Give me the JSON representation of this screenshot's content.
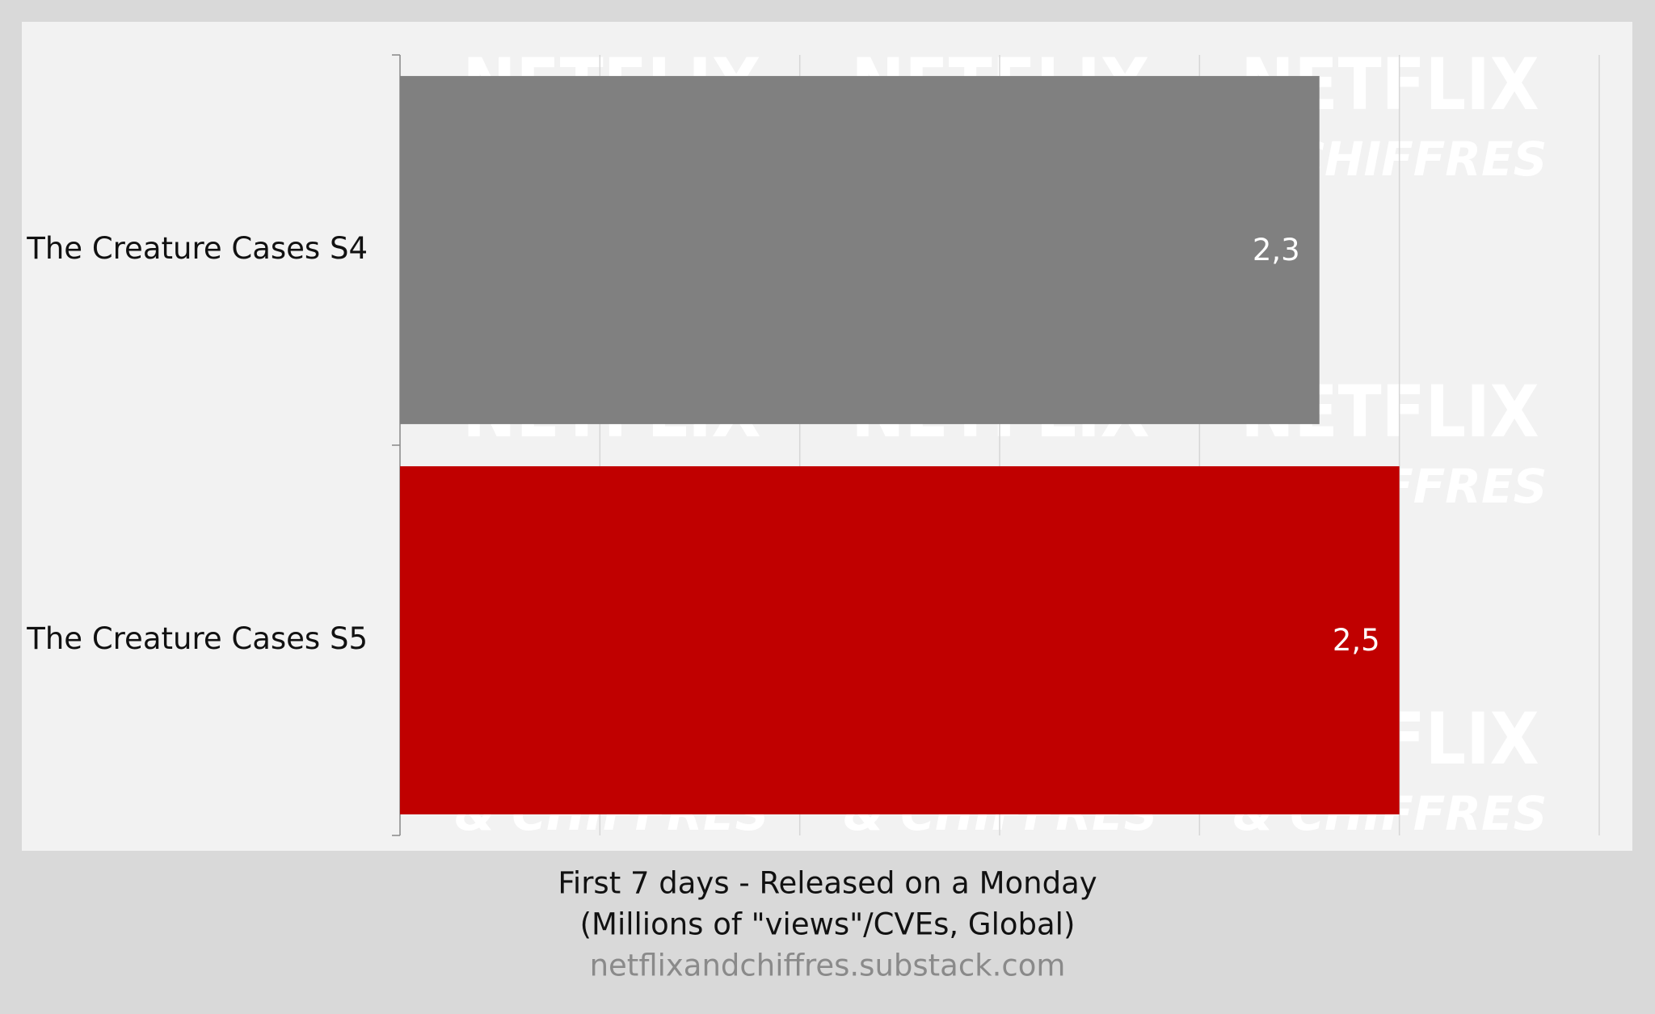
{
  "chart_data": {
    "type": "hbar",
    "categories": [
      "The Creature Cases S4",
      "The Creature Cases S5"
    ],
    "values": [
      2.3,
      2.5
    ],
    "value_labels": [
      "2,3",
      "2,5"
    ],
    "colors": [
      "#808080",
      "#c00000"
    ],
    "xlim": [
      0,
      3
    ],
    "xticks": [
      0,
      0.5,
      1,
      1.5,
      2,
      2.5,
      3
    ],
    "grid": true,
    "x_label": [
      "First 7 days - Released on a Monday",
      "(Millions of \"views\"/CVEs, Global)"
    ],
    "source": "netflixandchiffres.substack.com",
    "watermark": [
      "NETFLIX",
      "& CHIFFRES"
    ]
  }
}
